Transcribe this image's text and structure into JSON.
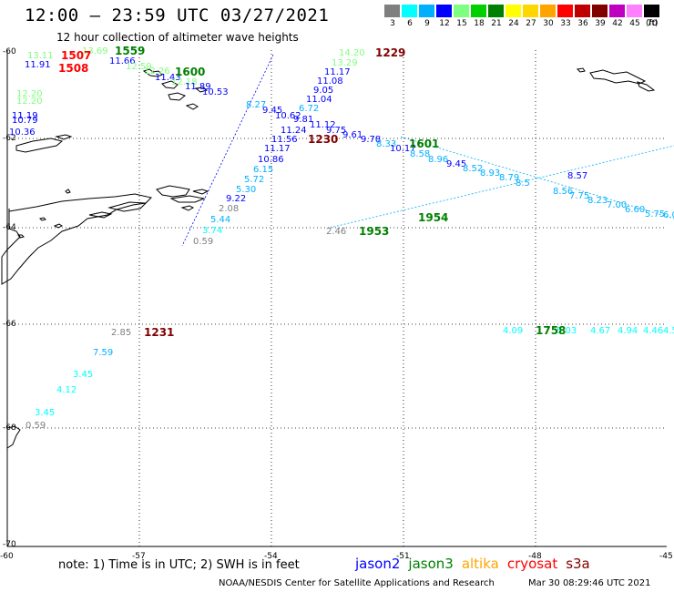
{
  "header": {
    "title": "12:00 – 23:59 UTC 03/27/2021",
    "subtitle": "12 hour collection of altimeter wave heights"
  },
  "scale": {
    "unit": "(ft)",
    "bins": [
      {
        "label": "3",
        "color": "#7f7f7f"
      },
      {
        "label": "6",
        "color": "#00ffff"
      },
      {
        "label": "9",
        "color": "#00b0ff"
      },
      {
        "label": "12",
        "color": "#0000ff"
      },
      {
        "label": "15",
        "color": "#7fff7f"
      },
      {
        "label": "18",
        "color": "#00d000"
      },
      {
        "label": "21",
        "color": "#008000"
      },
      {
        "label": "24",
        "color": "#ffff00"
      },
      {
        "label": "27",
        "color": "#ffd700"
      },
      {
        "label": "30",
        "color": "#ffa500"
      },
      {
        "label": "33",
        "color": "#ff0000"
      },
      {
        "label": "36",
        "color": "#c00000"
      },
      {
        "label": "39",
        "color": "#800000"
      },
      {
        "label": "42",
        "color": "#c000c0"
      },
      {
        "label": "45",
        "color": "#ff80ff"
      },
      {
        "label": "70",
        "color": "#000000"
      }
    ]
  },
  "axes": {
    "lat_labels": [
      "-60",
      "-62",
      "-64",
      "-66",
      "-68",
      "-70"
    ],
    "lon_labels": [
      "-60",
      "-57",
      "-54",
      "-51",
      "-48",
      "-45"
    ]
  },
  "footer": {
    "note": "note:  1) Time is in UTC;  2) SWH is in feet",
    "satellites": [
      {
        "name": "jason2",
        "color": "#0000ff"
      },
      {
        "name": "jason3",
        "color": "#008000"
      },
      {
        "name": "altika",
        "color": "#ffa500"
      },
      {
        "name": "cryosat",
        "color": "#ff0000"
      },
      {
        "name": "s3a",
        "color": "#800000"
      }
    ],
    "credit": "NOAA/NESDIS Center for Satellite Applications and Research",
    "timestamp": "Mar 30 08:29:46 UTC 2021"
  },
  "time_labels": [
    {
      "text": "1507",
      "color": "#ff0000"
    },
    {
      "text": "1508",
      "color": "#ff0000"
    },
    {
      "text": "1559",
      "color": "#008000"
    },
    {
      "text": "1600",
      "color": "#008000"
    },
    {
      "text": "1229",
      "color": "#800000"
    },
    {
      "text": "1230",
      "color": "#800000"
    },
    {
      "text": "1601",
      "color": "#008000"
    },
    {
      "text": "1231",
      "color": "#800000"
    },
    {
      "text": "1953",
      "color": "#008000"
    },
    {
      "text": "1954",
      "color": "#008000"
    },
    {
      "text": "1758",
      "color": "#008000"
    }
  ],
  "wave_labels": [
    {
      "text": "13.11",
      "color": "#7fff7f"
    },
    {
      "text": "11.91",
      "color": "#0000ff"
    },
    {
      "text": "12.20",
      "color": "#7fff7f"
    },
    {
      "text": "12.20",
      "color": "#7fff7f"
    },
    {
      "text": "11.19",
      "color": "#0000ff"
    },
    {
      "text": "10.79",
      "color": "#0000ff"
    },
    {
      "text": "10.36",
      "color": "#0000ff"
    },
    {
      "text": "13.69",
      "color": "#7fff7f"
    },
    {
      "text": "11.66",
      "color": "#0000ff"
    },
    {
      "text": "12.59",
      "color": "#7fff7f"
    },
    {
      "text": "12.26",
      "color": "#7fff7f"
    },
    {
      "text": "11.43",
      "color": "#0000ff"
    },
    {
      "text": "12.18",
      "color": "#7fff7f"
    },
    {
      "text": "11.89",
      "color": "#0000ff"
    },
    {
      "text": "10.53",
      "color": "#0000ff"
    },
    {
      "text": "14.20",
      "color": "#7fff7f"
    },
    {
      "text": "13.29",
      "color": "#7fff7f"
    },
    {
      "text": "11.17",
      "color": "#0000ff"
    },
    {
      "text": "11.08",
      "color": "#0000ff"
    },
    {
      "text": "9.05",
      "color": "#0000ff"
    },
    {
      "text": "11.04",
      "color": "#0000ff"
    },
    {
      "text": "6.72",
      "color": "#00b0ff"
    },
    {
      "text": "8.27",
      "color": "#00b0ff"
    },
    {
      "text": "9.45",
      "color": "#0000ff"
    },
    {
      "text": "10.62",
      "color": "#0000ff"
    },
    {
      "text": "9.81",
      "color": "#0000ff"
    },
    {
      "text": "11.12",
      "color": "#0000ff"
    },
    {
      "text": "9.75",
      "color": "#0000ff"
    },
    {
      "text": "11.24",
      "color": "#0000ff"
    },
    {
      "text": "9.61",
      "color": "#0000ff"
    },
    {
      "text": "11.56",
      "color": "#0000ff"
    },
    {
      "text": "9.78",
      "color": "#0000ff"
    },
    {
      "text": "8.33",
      "color": "#00b0ff"
    },
    {
      "text": "10.17",
      "color": "#0000ff"
    },
    {
      "text": "11.17",
      "color": "#0000ff"
    },
    {
      "text": "10.86",
      "color": "#0000ff"
    },
    {
      "text": "6.15",
      "color": "#00b0ff"
    },
    {
      "text": "5.72",
      "color": "#00b0ff"
    },
    {
      "text": "5.30",
      "color": "#00b0ff"
    },
    {
      "text": "9.22",
      "color": "#0000ff"
    },
    {
      "text": "2.08",
      "color": "#7f7f7f"
    },
    {
      "text": "5.44",
      "color": "#00b0ff"
    },
    {
      "text": "3.74",
      "color": "#00ffff"
    },
    {
      "text": "0.59",
      "color": "#7f7f7f"
    },
    {
      "text": "8.58",
      "color": "#00b0ff"
    },
    {
      "text": "8.96",
      "color": "#00b0ff"
    },
    {
      "text": "9.45",
      "color": "#0000ff"
    },
    {
      "text": "8.52",
      "color": "#00b0ff"
    },
    {
      "text": "8.93",
      "color": "#00b0ff"
    },
    {
      "text": "8.79",
      "color": "#00b0ff"
    },
    {
      "text": "8.5",
      "color": "#00b0ff"
    },
    {
      "text": "8.57",
      "color": "#0000ff"
    },
    {
      "text": "8.56",
      "color": "#00b0ff"
    },
    {
      "text": "7.75",
      "color": "#00b0ff"
    },
    {
      "text": "8.23",
      "color": "#00b0ff"
    },
    {
      "text": "7.00",
      "color": "#00b0ff"
    },
    {
      "text": "6.60",
      "color": "#00b0ff"
    },
    {
      "text": "5.75",
      "color": "#00b0ff"
    },
    {
      "text": "6.0",
      "color": "#00b0ff"
    },
    {
      "text": "2.46",
      "color": "#7f7f7f"
    },
    {
      "text": "2.85",
      "color": "#7f7f7f"
    },
    {
      "text": "7.59",
      "color": "#00b0ff"
    },
    {
      "text": "3.45",
      "color": "#00ffff"
    },
    {
      "text": "4.12",
      "color": "#00ffff"
    },
    {
      "text": "3.45",
      "color": "#00ffff"
    },
    {
      "text": "0.59",
      "color": "#7f7f7f"
    },
    {
      "text": "4.09",
      "color": "#00ffff"
    },
    {
      "text": "5.03",
      "color": "#00ffff"
    },
    {
      "text": "4.67",
      "color": "#00ffff"
    },
    {
      "text": "4.94",
      "color": "#00ffff"
    },
    {
      "text": "4.46",
      "color": "#00ffff"
    },
    {
      "text": "4.5",
      "color": "#00ffff"
    }
  ]
}
